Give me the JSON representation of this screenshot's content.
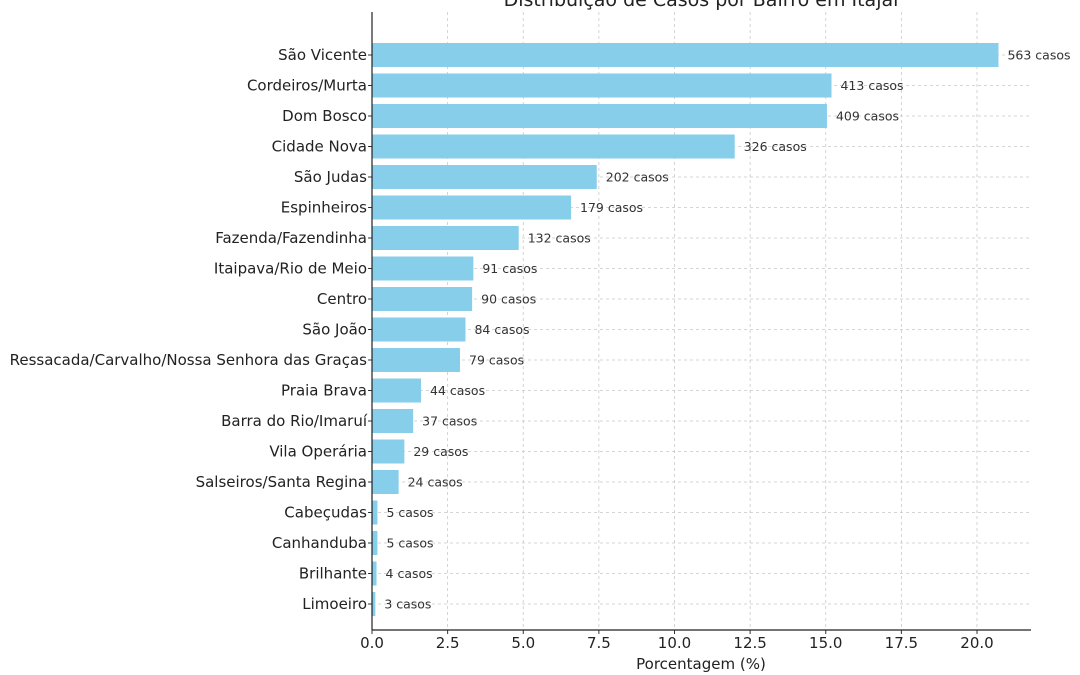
{
  "chart_data": {
    "type": "bar",
    "orientation": "horizontal",
    "title": "Distribuição de Casos por Bairro em Itajaí",
    "xlabel": "Porcentagem (%)",
    "ylabel": "",
    "xlim": [
      0,
      21.75
    ],
    "xticks": [
      "0.0",
      "2.5",
      "5.0",
      "7.5",
      "10.0",
      "12.5",
      "15.0",
      "17.5",
      "20.0"
    ],
    "grid": true,
    "bar_color": "#87ceeb",
    "categories": [
      "São Vicente",
      "Cordeiros/Murta",
      "Dom Bosco",
      "Cidade Nova",
      "São Judas",
      "Espinheiros",
      "Fazenda/Fazendinha",
      "Itaipava/Rio de Meio",
      "Centro",
      "São João",
      "Ressacada/Carvalho/Nossa Senhora das Graças",
      "Praia Brava",
      "Barra do Rio/Imaruí",
      "Vila Operária",
      "Salseiros/Santa Regina",
      "Cabeçudas",
      "Canhanduba",
      "Brilhante",
      "Limoeiro"
    ],
    "values": [
      20.71,
      15.19,
      15.04,
      11.99,
      7.43,
      6.58,
      4.85,
      3.35,
      3.31,
      3.09,
      2.91,
      1.62,
      1.36,
      1.07,
      0.88,
      0.18,
      0.18,
      0.15,
      0.11
    ],
    "data_labels": [
      "563 casos",
      "413 casos",
      "409 casos",
      "326 casos",
      "202 casos",
      "179 casos",
      "132 casos",
      "91 casos",
      "90 casos",
      "84 casos",
      "79 casos",
      "44 casos",
      "37 casos",
      "29 casos",
      "24 casos",
      "5 casos",
      "5 casos",
      "4 casos",
      "3 casos"
    ]
  }
}
